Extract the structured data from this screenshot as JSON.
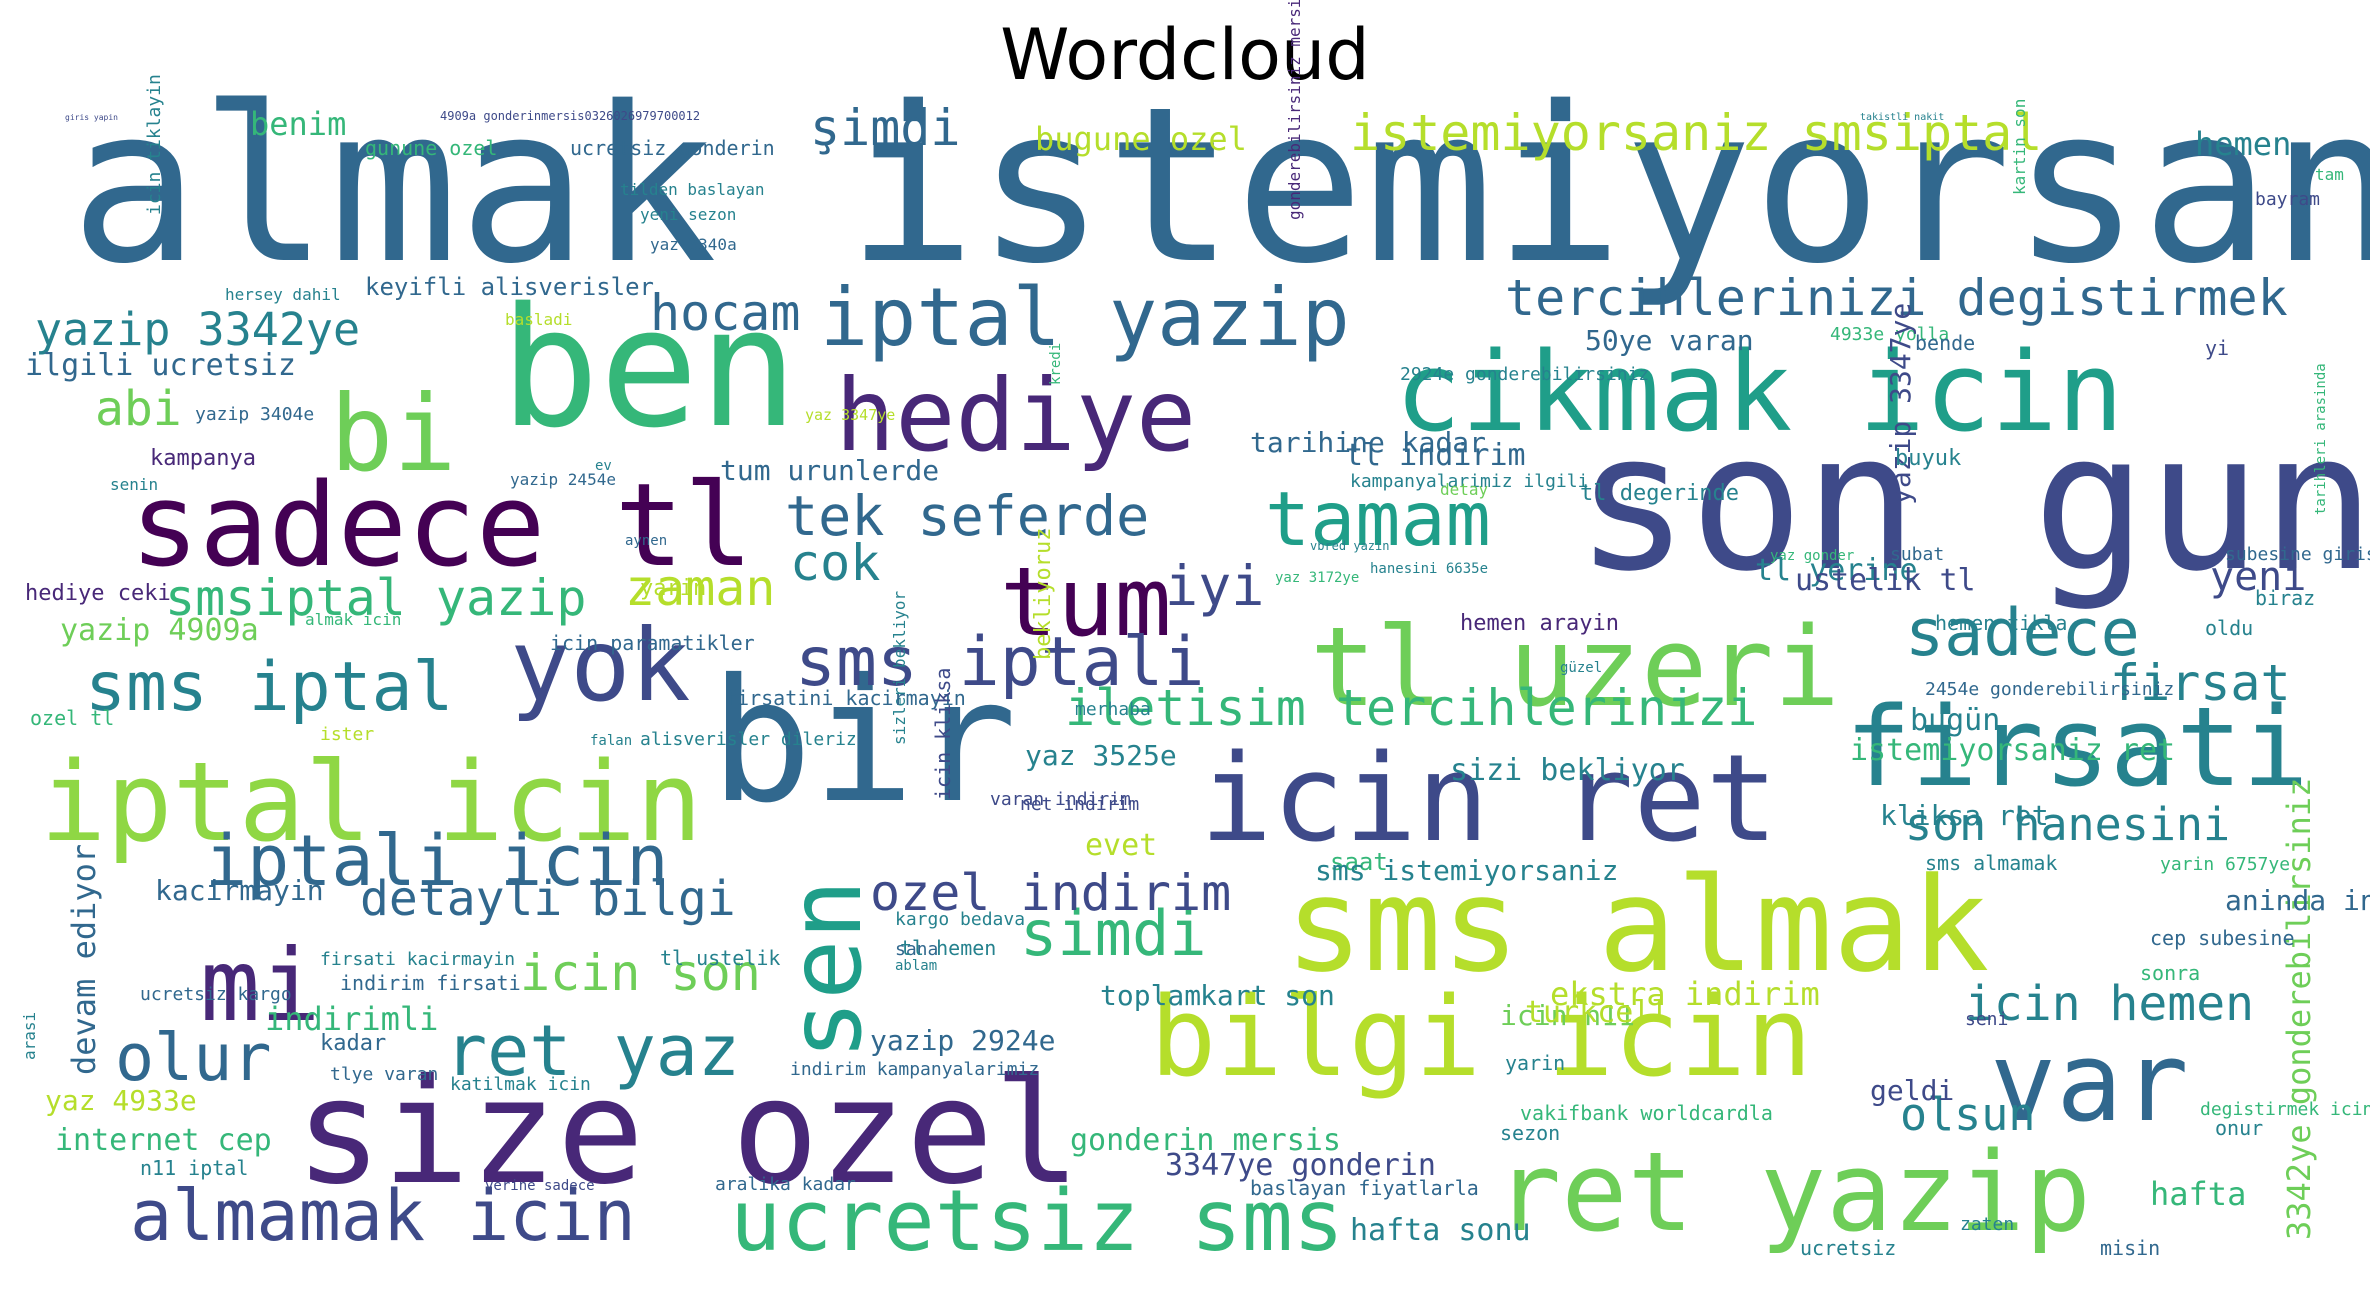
{
  "title": "Wordcloud",
  "palette": [
    "#440154",
    "#482878",
    "#3e4a89",
    "#31688e",
    "#26828e",
    "#1f9e89",
    "#35b779",
    "#6ece58",
    "#b5de2b",
    "#fde725"
  ],
  "words": [
    {
      "text": "almak istemiyorsaniz",
      "c": "#31688e"
    },
    {
      "text": "son gun",
      "c": "#3e4a89"
    },
    {
      "text": "bir",
      "c": "#31688e"
    },
    {
      "text": "ben",
      "c": "#35b779"
    },
    {
      "text": "size ozel",
      "c": "#482878"
    },
    {
      "text": "sms almak",
      "c": "#b5de2b"
    },
    {
      "text": "icin ret",
      "c": "#3e4a89"
    },
    {
      "text": "sadece tl",
      "c": "#440154"
    },
    {
      "text": "cikmak icin",
      "c": "#1f9e89"
    },
    {
      "text": "tl uzeri",
      "c": "#6ece58"
    },
    {
      "text": "ret yazip",
      "c": "#6ece58"
    },
    {
      "text": "iptal icin",
      "c": "#8fd744"
    },
    {
      "text": "bilgi icin",
      "c": "#b5de2b"
    },
    {
      "text": "firsati",
      "c": "#26828e"
    },
    {
      "text": "var",
      "c": "#31688e"
    },
    {
      "text": "bi",
      "c": "#6ece58"
    },
    {
      "text": "hediye",
      "c": "#482878"
    },
    {
      "text": "yok",
      "c": "#3e4a89"
    },
    {
      "text": "sen",
      "c": "#1f9e89"
    },
    {
      "text": "mi",
      "c": "#482878"
    },
    {
      "text": "tum",
      "c": "#440154"
    },
    {
      "text": "tamam",
      "c": "#1f9e89"
    },
    {
      "text": "ucretsiz sms",
      "c": "#35b779"
    },
    {
      "text": "almamak icin",
      "c": "#3e4a89"
    },
    {
      "text": "iptali icin",
      "c": "#31688e"
    },
    {
      "text": "ret yaz",
      "c": "#26828e"
    },
    {
      "text": "iptal yazip",
      "c": "#31688e"
    },
    {
      "text": "sms iptal",
      "c": "#26828e"
    },
    {
      "text": "sms iptali",
      "c": "#3e4a89"
    },
    {
      "text": "sadece",
      "c": "#26828e"
    },
    {
      "text": "olur",
      "c": "#31688e"
    },
    {
      "text": "simdi",
      "c": "#35b779"
    },
    {
      "text": "istemiyorsaniz smsiptal",
      "c": "#b5de2b"
    },
    {
      "text": "tercihlerinizi degistirmek",
      "c": "#31688e"
    },
    {
      "text": "iletisim tercihlerinizi",
      "c": "#35b779"
    },
    {
      "text": "son hanesini",
      "c": "#26828e"
    },
    {
      "text": "icin hemen",
      "c": "#26828e"
    },
    {
      "text": "olsun",
      "c": "#26828e"
    },
    {
      "text": "firsat",
      "c": "#26828e"
    },
    {
      "text": "tek seferde",
      "c": "#31688e"
    },
    {
      "text": "yazip 3342ye",
      "c": "#26828e"
    },
    {
      "text": "smsiptal yazip",
      "c": "#35b779"
    },
    {
      "text": "detayli bilgi",
      "c": "#31688e"
    },
    {
      "text": "ozel indirim",
      "c": "#3e4a89"
    },
    {
      "text": "icin son",
      "c": "#6ece58"
    },
    {
      "text": "hocam",
      "c": "#31688e"
    },
    {
      "text": "zaman",
      "c": "#b5de2b"
    },
    {
      "text": "cok",
      "c": "#26828e"
    },
    {
      "text": "iyi",
      "c": "#3e4a89"
    },
    {
      "text": "yeni",
      "c": "#3e4a89"
    },
    {
      "text": "şimdi",
      "c": "#31688e"
    },
    {
      "text": "abi",
      "c": "#6ece58"
    },
    {
      "text": "3342ye gonderebilirsiniz",
      "c": "#6ece58"
    },
    {
      "text": "indirimli",
      "c": "#35b779"
    },
    {
      "text": "devam ediyor",
      "c": "#31688e"
    },
    {
      "text": "hafta",
      "c": "#35b779"
    },
    {
      "text": "benim",
      "c": "#35b779"
    },
    {
      "text": "bugune ozel",
      "c": "#b5de2b"
    },
    {
      "text": "hemen",
      "c": "#26828e"
    },
    {
      "text": "gunune ozel",
      "c": "#35b779"
    },
    {
      "text": "ucretsiz gonderin",
      "c": "#31688e"
    },
    {
      "text": "4909a gonderinmersis0326026979700012",
      "c": "#3e4a89"
    },
    {
      "text": "giris yapin",
      "c": "#3e4a89"
    },
    {
      "text": "takistli nakit",
      "c": "#26828e"
    },
    {
      "text": "kartin son",
      "c": "#35b779"
    },
    {
      "text": "tam",
      "c": "#35b779"
    },
    {
      "text": "bayram",
      "c": "#3e4a89"
    },
    {
      "text": "tilden baslayan",
      "c": "#26828e"
    },
    {
      "text": "yeni sezon",
      "c": "#26828e"
    },
    {
      "text": "yaz 3340a",
      "c": "#31688e"
    },
    {
      "text": "hersey dahil",
      "c": "#26828e"
    },
    {
      "text": "keyifli alisverisler",
      "c": "#31688e"
    },
    {
      "text": "ilgili ucretsiz",
      "c": "#31688e"
    },
    {
      "text": "basladi",
      "c": "#b5de2b"
    },
    {
      "text": "50ye varan",
      "c": "#31688e"
    },
    {
      "text": "4933e yolla",
      "c": "#35b779"
    },
    {
      "text": "bende",
      "c": "#31688e"
    },
    {
      "text": "yi",
      "c": "#3e4a89"
    },
    {
      "text": "kampanya",
      "c": "#482878"
    },
    {
      "text": "yazip 3404e",
      "c": "#31688e"
    },
    {
      "text": "kredi",
      "c": "#35b779"
    },
    {
      "text": "2924e gonderebilirsiniz",
      "c": "#26828e"
    },
    {
      "text": "yaz 3347ye",
      "c": "#b5de2b"
    },
    {
      "text": "tarihine kadar",
      "c": "#31688e"
    },
    {
      "text": "tl indirim",
      "c": "#31688e"
    },
    {
      "text": "tum urunlerde",
      "c": "#31688e"
    },
    {
      "text": "tl degerinde",
      "c": "#26828e"
    },
    {
      "text": "kampanyalarimiz ilgili",
      "c": "#26828e"
    },
    {
      "text": "yazip 2454e",
      "c": "#31688e"
    },
    {
      "text": "yazip 3347ye",
      "c": "#3e4a89"
    },
    {
      "text": "buyuk",
      "c": "#26828e"
    },
    {
      "text": "tarihleri arasinda",
      "c": "#35b779"
    },
    {
      "text": "senin",
      "c": "#26828e"
    },
    {
      "text": "ev",
      "c": "#26828e"
    },
    {
      "text": "detay",
      "c": "#6ece58"
    },
    {
      "text": "yaz gonder",
      "c": "#35b779"
    },
    {
      "text": "subat",
      "c": "#31688e"
    },
    {
      "text": "subesine giris",
      "c": "#31688e"
    },
    {
      "text": "tl yerine",
      "c": "#26828e"
    },
    {
      "text": "ustelik tl",
      "c": "#3e4a89"
    },
    {
      "text": "biraz",
      "c": "#26828e"
    },
    {
      "text": "hediye ceki",
      "c": "#482878"
    },
    {
      "text": "yazip 4909a",
      "c": "#6ece58"
    },
    {
      "text": "icin paramatikler",
      "c": "#31688e"
    },
    {
      "text": "almak icin",
      "c": "#35b779"
    },
    {
      "text": "yarin",
      "c": "#b5de2b"
    },
    {
      "text": "hemen arayin",
      "c": "#482878"
    },
    {
      "text": "hemen tikla",
      "c": "#26828e"
    },
    {
      "text": "oldu",
      "c": "#26828e"
    },
    {
      "text": "aynen",
      "c": "#31688e"
    },
    {
      "text": "sizleri bekliyor",
      "c": "#26828e"
    },
    {
      "text": "vbred yazin",
      "c": "#26828e"
    },
    {
      "text": "yaz 3172ye",
      "c": "#35b779"
    },
    {
      "text": "hanesini 6635e",
      "c": "#26828e"
    },
    {
      "text": "güzel",
      "c": "#26828e"
    },
    {
      "text": "2454e gonderebilirsiniz",
      "c": "#31688e"
    },
    {
      "text": "bugün",
      "c": "#26828e"
    },
    {
      "text": "ozel tl",
      "c": "#35b779"
    },
    {
      "text": "ister",
      "c": "#b5de2b"
    },
    {
      "text": "firsatini kacirmayin",
      "c": "#31688e"
    },
    {
      "text": "alisverisler dileriz",
      "c": "#26828e"
    },
    {
      "text": "falan",
      "c": "#26828e"
    },
    {
      "text": "icin kliksa",
      "c": "#3e4a89"
    },
    {
      "text": "bekliyoruz",
      "c": "#b5de2b"
    },
    {
      "text": "merhaba",
      "c": "#26828e"
    },
    {
      "text": "varan indirim",
      "c": "#3e4a89"
    },
    {
      "text": "net indirim",
      "c": "#3e4a89"
    },
    {
      "text": "yaz 3525e",
      "c": "#26828e"
    },
    {
      "text": "istemiyorsaniz ret",
      "c": "#35b779"
    },
    {
      "text": "sizi bekliyor",
      "c": "#26828e"
    },
    {
      "text": "kliksa ret",
      "c": "#26828e"
    },
    {
      "text": "evet",
      "c": "#b5de2b"
    },
    {
      "text": "saat",
      "c": "#35b779"
    },
    {
      "text": "sms istemiyorsaniz",
      "c": "#26828e"
    },
    {
      "text": "sms almamak",
      "c": "#26828e"
    },
    {
      "text": "yarin 6757ye",
      "c": "#35b779"
    },
    {
      "text": "kacirmayin",
      "c": "#31688e"
    },
    {
      "text": "aninda indirim",
      "c": "#31688e"
    },
    {
      "text": "kargo bedava",
      "c": "#26828e"
    },
    {
      "text": "sana",
      "c": "#31688e"
    },
    {
      "text": "ablam",
      "c": "#26828e"
    },
    {
      "text": "cep subesine",
      "c": "#31688e"
    },
    {
      "text": "firsati kacirmayin",
      "c": "#26828e"
    },
    {
      "text": "indirim firsati",
      "c": "#31688e"
    },
    {
      "text": "tl hemen",
      "c": "#26828e"
    },
    {
      "text": "tl ustelik",
      "c": "#26828e"
    },
    {
      "text": "sonra",
      "c": "#35b779"
    },
    {
      "text": "kart son",
      "c": "#26828e"
    },
    {
      "text": "ekstra indirim",
      "c": "#b5de2b"
    },
    {
      "text": "ucretsiz kargo",
      "c": "#31688e"
    },
    {
      "text": "toplam",
      "c": "#26828e"
    },
    {
      "text": "icin n11",
      "c": "#6ece58"
    },
    {
      "text": "turkcell",
      "c": "#b5de2b"
    },
    {
      "text": "kadar",
      "c": "#31688e"
    },
    {
      "text": "seni",
      "c": "#3e4a89"
    },
    {
      "text": "yazip 2924e",
      "c": "#31688e"
    },
    {
      "text": "tlye varan",
      "c": "#31688e"
    },
    {
      "text": "katilmak icin",
      "c": "#26828e"
    },
    {
      "text": "indirim kampanyalarimiz",
      "c": "#31688e"
    },
    {
      "text": "yarin",
      "c": "#26828e"
    },
    {
      "text": "geldi",
      "c": "#3e4a89"
    },
    {
      "text": "yaz 4933e",
      "c": "#b5de2b"
    },
    {
      "text": "internet cep",
      "c": "#35b779"
    },
    {
      "text": "gonderin mersis",
      "c": "#35b779"
    },
    {
      "text": "vakifbank worldcardla",
      "c": "#35b779"
    },
    {
      "text": "sezon",
      "c": "#26828e"
    },
    {
      "text": "onur",
      "c": "#26828e"
    },
    {
      "text": "degistirmek icin",
      "c": "#35b779"
    },
    {
      "text": "n11 iptal",
      "c": "#26828e"
    },
    {
      "text": "3347ye gonderin",
      "c": "#3e4a89"
    },
    {
      "text": "baslayan fiyatlarla",
      "c": "#31688e"
    },
    {
      "text": "aralika kadar",
      "c": "#31688e"
    },
    {
      "text": "yerine sadece",
      "c": "#3e4a89"
    },
    {
      "text": "hafta sonu",
      "c": "#26828e"
    },
    {
      "text": "zaten",
      "c": "#26828e"
    },
    {
      "text": "ucretsiz",
      "c": "#26828e"
    },
    {
      "text": "misin",
      "c": "#31688e"
    },
    {
      "text": "arasi",
      "c": "#26828e"
    },
    {
      "text": "icin tiklayin",
      "c": "#26828e"
    },
    {
      "text": "gonderebilirsiniz mersis0326026979700012",
      "c": "#482878"
    }
  ]
}
